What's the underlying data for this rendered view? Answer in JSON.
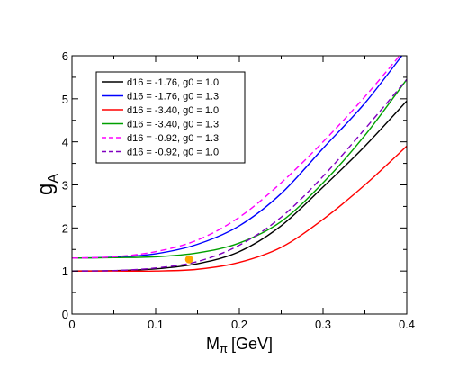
{
  "chart_data": {
    "type": "line",
    "xlabel": "M",
    "xlabel_sub": "π",
    "xlabel_unit": "[GeV]",
    "ylabel": "g",
    "ylabel_sub": "A",
    "xlim": [
      0,
      0.4
    ],
    "ylim": [
      0,
      6
    ],
    "x_ticks": [
      0,
      0.1,
      0.2,
      0.3,
      0.4
    ],
    "x_tick_labels": [
      "0",
      "0.1",
      "0.2",
      "0.3",
      "0.4"
    ],
    "y_ticks": [
      0,
      1,
      2,
      3,
      4,
      5,
      6
    ],
    "y_tick_labels": [
      "0",
      "1",
      "2",
      "3",
      "4",
      "5",
      "6"
    ],
    "grid": false,
    "legend_position": "top-left",
    "x": [
      0,
      0.05,
      0.1,
      0.15,
      0.2,
      0.25,
      0.3,
      0.35,
      0.4
    ],
    "series": [
      {
        "name": "d16 = -1.76, g0 = 1.0",
        "color": "#000000",
        "dash": "solid",
        "values": [
          1.0,
          1.01,
          1.05,
          1.17,
          1.45,
          2.05,
          2.95,
          3.9,
          4.95
        ]
      },
      {
        "name": "d16 = -1.76, g0 = 1.3",
        "color": "#0000ff",
        "dash": "solid",
        "values": [
          1.3,
          1.32,
          1.4,
          1.62,
          2.05,
          2.8,
          3.85,
          4.9,
          6.15
        ]
      },
      {
        "name": "d16 = -3.40, g0 = 1.0",
        "color": "#ff0000",
        "dash": "solid",
        "values": [
          1.0,
          1.0,
          1.0,
          1.04,
          1.2,
          1.55,
          2.2,
          3.0,
          3.9
        ]
      },
      {
        "name": "d16 = -3.40, g0 = 1.3",
        "color": "#00a000",
        "dash": "solid",
        "values": [
          1.3,
          1.31,
          1.33,
          1.42,
          1.65,
          2.15,
          3.05,
          4.15,
          5.45
        ]
      },
      {
        "name": "d16 = -0.92, g0 = 1.3",
        "color": "#ff00ff",
        "dash": "dashed",
        "values": [
          1.3,
          1.33,
          1.45,
          1.72,
          2.25,
          3.05,
          4.0,
          5.05,
          6.2
        ]
      },
      {
        "name": "d16 = -0.92, g0 = 1.0",
        "color": "#8000c0",
        "dash": "dashed",
        "values": [
          1.0,
          1.01,
          1.07,
          1.22,
          1.6,
          2.25,
          3.2,
          4.3,
          5.45
        ]
      }
    ],
    "marker": {
      "x": 0.14,
      "y": 1.27,
      "color": "#ffa500"
    }
  }
}
